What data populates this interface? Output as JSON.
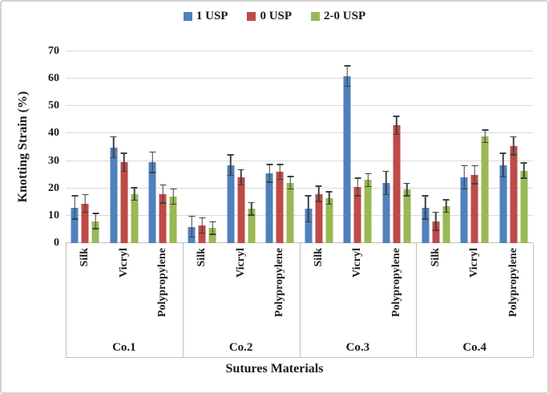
{
  "chart_data": {
    "type": "bar",
    "title": "",
    "ylabel": "Knotting Strain (%)",
    "xlabel": "Sutures Materials",
    "ylim": [
      0,
      70
    ],
    "ytick_step": 10,
    "yticks": [
      0,
      10,
      20,
      30,
      40,
      50,
      60,
      70
    ],
    "grid": true,
    "legend_position": "top-center",
    "series": [
      {
        "name": "1 USP",
        "color": "#4F81BD"
      },
      {
        "name": "0 USP",
        "color": "#BE4B48"
      },
      {
        "name": "2-0 USP",
        "color": "#98B954"
      }
    ],
    "material_labels": [
      "Silk",
      "Vicryl",
      "Polypropylene"
    ],
    "group_labels": [
      "Co.1",
      "Co.2",
      "Co.3",
      "Co.4"
    ],
    "groups": [
      {
        "label": "Co.1",
        "materials": [
          {
            "label": "Silk",
            "values": [
              13,
              14.5,
              8
            ],
            "errors": [
              4.5,
              3.5,
              3
            ]
          },
          {
            "label": "Vicryl",
            "values": [
              35,
              29.5,
              18
            ],
            "errors": [
              4,
              3.5,
              2.5
            ]
          },
          {
            "label": "Polypropylene",
            "values": [
              29.5,
              18,
              17
            ],
            "errors": [
              4,
              3.5,
              3
            ]
          }
        ]
      },
      {
        "label": "Co.2",
        "materials": [
          {
            "label": "Silk",
            "values": [
              6,
              6.5,
              5.5
            ],
            "errors": [
              4,
              3,
              2.5
            ]
          },
          {
            "label": "Vicryl",
            "values": [
              28.5,
              24,
              12.5
            ],
            "errors": [
              4,
              3,
              2.5
            ]
          },
          {
            "label": "Polypropylene",
            "values": [
              25.5,
              26,
              22
            ],
            "errors": [
              3.5,
              3,
              2.5
            ]
          }
        ]
      },
      {
        "label": "Co.3",
        "materials": [
          {
            "label": "Silk",
            "values": [
              12.5,
              18,
              16.5
            ],
            "errors": [
              5,
              3,
              2.5
            ]
          },
          {
            "label": "Vicryl",
            "values": [
              61,
              20.5,
              23
            ],
            "errors": [
              4,
              3.5,
              2.5
            ]
          },
          {
            "label": "Polypropylene",
            "values": [
              22,
              43,
              19.5
            ],
            "errors": [
              4.5,
              3.5,
              2.5
            ]
          }
        ]
      },
      {
        "label": "Co.4",
        "materials": [
          {
            "label": "Silk",
            "values": [
              13,
              8,
              13.5
            ],
            "errors": [
              4.5,
              3.5,
              2.5
            ]
          },
          {
            "label": "Vicryl",
            "values": [
              24,
              25,
              39
            ],
            "errors": [
              4.5,
              3.5,
              2.5
            ]
          },
          {
            "label": "Polypropylene",
            "values": [
              28.5,
              35.5,
              26.5
            ],
            "errors": [
              4.5,
              3.5,
              3
            ]
          }
        ]
      }
    ]
  },
  "colors": {
    "error_bar": "#404040",
    "gridline": "#D9D9D9",
    "axis_line": "#BFBFBF"
  }
}
